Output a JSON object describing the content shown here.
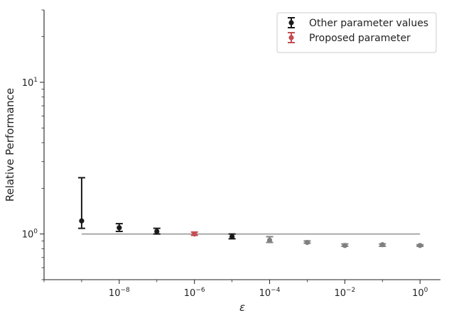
{
  "chart_data": {
    "type": "scatter",
    "title": "",
    "xlabel": "ε",
    "ylabel": "Relative Performance",
    "x_scale": "log",
    "y_scale": "log",
    "xlim": [
      1e-10,
      3.5
    ],
    "ylim": [
      0.5,
      30
    ],
    "x_ticks": [
      {
        "value": 1e-08,
        "base": "10",
        "exp": "−8"
      },
      {
        "value": 1e-06,
        "base": "10",
        "exp": "−6"
      },
      {
        "value": 0.0001,
        "base": "10",
        "exp": "−4"
      },
      {
        "value": 0.01,
        "base": "10",
        "exp": "−2"
      },
      {
        "value": 1,
        "base": "10",
        "exp": "0"
      }
    ],
    "y_ticks": [
      {
        "value": 1,
        "base": "10",
        "exp": "0"
      },
      {
        "value": 10,
        "base": "10",
        "exp": "1"
      }
    ],
    "reference_line": {
      "y": 1.0,
      "x_from": 1e-09,
      "x_to": 1,
      "color": "#999999"
    },
    "legend_position": "top-right",
    "series": [
      {
        "name": "Other parameter values",
        "color": "#1a1a1a",
        "points": [
          {
            "x": 1e-09,
            "y": 1.22,
            "low": 1.09,
            "high": 2.35
          },
          {
            "x": 1e-08,
            "y": 1.1,
            "low": 1.04,
            "high": 1.17
          },
          {
            "x": 1e-07,
            "y": 1.04,
            "low": 1.0,
            "high": 1.09
          },
          {
            "x": 1e-05,
            "y": 0.96,
            "low": 0.93,
            "high": 1.0
          }
        ]
      },
      {
        "name": "Proposed parameter",
        "color": "#c44e52",
        "points": [
          {
            "x": 1e-06,
            "y": 1.0,
            "low": 0.98,
            "high": 1.03
          }
        ]
      },
      {
        "name": "",
        "color": "#808080",
        "points": [
          {
            "x": 0.0001,
            "y": 0.91,
            "low": 0.88,
            "high": 0.96
          },
          {
            "x": 0.001,
            "y": 0.88,
            "low": 0.87,
            "high": 0.9
          },
          {
            "x": 0.01,
            "y": 0.84,
            "low": 0.83,
            "high": 0.86
          },
          {
            "x": 0.1,
            "y": 0.85,
            "low": 0.83,
            "high": 0.86
          },
          {
            "x": 1,
            "y": 0.84,
            "low": 0.83,
            "high": 0.85
          }
        ]
      }
    ]
  }
}
